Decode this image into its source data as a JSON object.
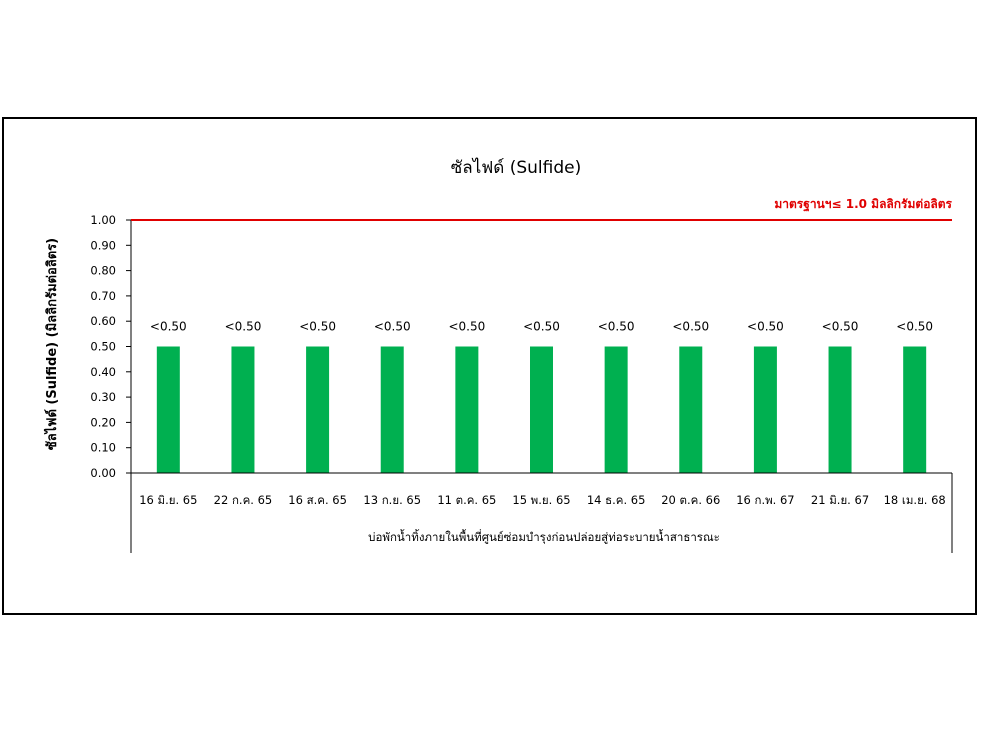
{
  "chart_data": {
    "type": "bar",
    "title": "ซัลไฟด์ (Sulfide)",
    "ylabel": "ซัลไฟด์ (Sulfide) (มิลลิกรัมต่อลิตร)",
    "xgroup_label": "บ่อพักน้ำทิ้งภายในพื้นที่ศูนย์ซ่อมบำรุงก่อนปล่อยสู่ท่อระบายน้ำสาธารณะ",
    "categories": [
      "16 มิ.ย. 65",
      "22 ก.ค. 65",
      "16 ส.ค. 65",
      "13 ก.ย. 65",
      "11 ต.ค. 65",
      "15 พ.ย. 65",
      "14 ธ.ค. 65",
      "20 ต.ค. 66",
      "16 ก.พ. 67",
      "21 มิ.ย. 67",
      "18 เม.ย. 68"
    ],
    "values": [
      0.5,
      0.5,
      0.5,
      0.5,
      0.5,
      0.5,
      0.5,
      0.5,
      0.5,
      0.5,
      0.5
    ],
    "data_labels": [
      "<0.50",
      "<0.50",
      "<0.50",
      "<0.50",
      "<0.50",
      "<0.50",
      "<0.50",
      "<0.50",
      "<0.50",
      "<0.50",
      "<0.50"
    ],
    "ylim": [
      0,
      1.0
    ],
    "yticks": [
      "0.00",
      "0.10",
      "0.20",
      "0.30",
      "0.40",
      "0.50",
      "0.60",
      "0.70",
      "0.80",
      "0.90",
      "1.00"
    ],
    "standard": {
      "value": 1.0,
      "label": "มาตรฐานฯ≤ 1.0 มิลลิกรัมต่อลิตร",
      "color": "#e00000"
    },
    "bar_color": "#00b050",
    "grid": false,
    "legend": "none"
  }
}
